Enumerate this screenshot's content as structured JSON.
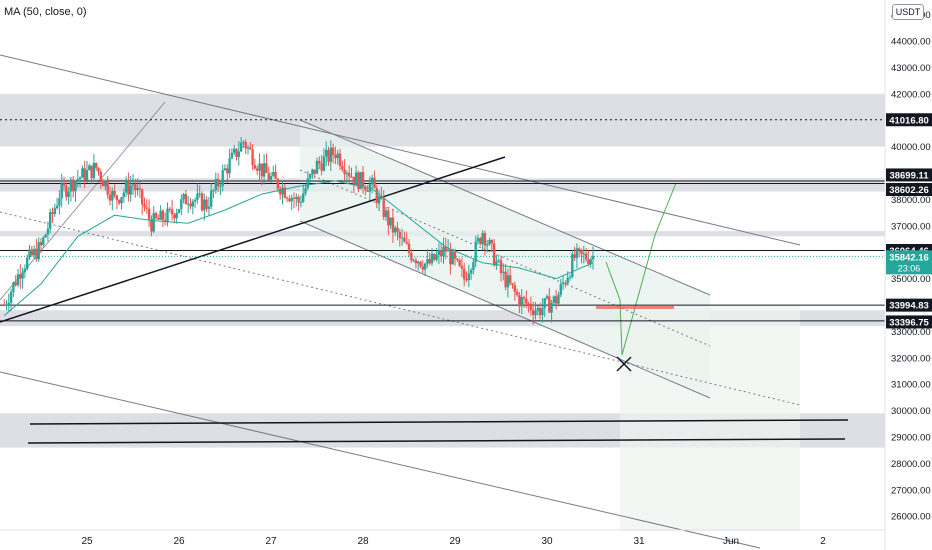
{
  "indicator": {
    "label": "MA (50, close, 0)"
  },
  "currency": "USDT",
  "colors": {
    "up": "#26a69a",
    "down": "#ef5350",
    "ma": "#26a69a",
    "zone": "#d1d4dc",
    "channel_fill": "#e6f2ec",
    "price_tag": "#26a69a",
    "projection": "#4caf50"
  },
  "chart_data": {
    "type": "candlestick",
    "title": "",
    "x_ticks": [
      "25",
      "26",
      "27",
      "28",
      "29",
      "30",
      "31",
      "Jun",
      "2"
    ],
    "y_ticks": [
      26000,
      27000,
      28000,
      29000,
      30000,
      31000,
      32000,
      33000,
      34000,
      35000,
      36000,
      37000,
      38000,
      39000,
      40000,
      41000,
      42000,
      43000,
      44000,
      45000
    ],
    "ylim": [
      25600,
      45500
    ],
    "xlim": [
      24.1,
      33.1
    ],
    "series": [
      {
        "name": "Price",
        "x": [
          24.1,
          24.3,
          24.5,
          24.7,
          24.9,
          25.1,
          25.3,
          25.5,
          25.7,
          25.9,
          26.1,
          26.3,
          26.5,
          26.7,
          26.9,
          27.1,
          27.3,
          27.5,
          27.7,
          27.9,
          28.1,
          28.3,
          28.5,
          28.7,
          28.9,
          29.1,
          29.3,
          29.5,
          29.7,
          29.9,
          30.1,
          30.3,
          30.5
        ],
        "y": [
          34000,
          35500,
          36200,
          38200,
          38800,
          39200,
          38000,
          38600,
          37100,
          37400,
          38100,
          37800,
          39100,
          40200,
          39100,
          38500,
          37900,
          39300,
          39800,
          38800,
          38500,
          37000,
          36000,
          35500,
          36100,
          35000,
          36800,
          35200,
          34200,
          33800,
          34200,
          35800,
          35842
        ]
      },
      {
        "name": "MA 50",
        "x": [
          24.1,
          24.5,
          24.9,
          25.3,
          25.7,
          26.1,
          26.5,
          26.9,
          27.3,
          27.7,
          28.1,
          28.5,
          28.9,
          29.3,
          29.7,
          30.1,
          30.5
        ],
        "y": [
          33600,
          34800,
          36600,
          37400,
          37200,
          37100,
          37600,
          38200,
          38500,
          38700,
          38400,
          37300,
          36200,
          35600,
          35400,
          35000,
          35600
        ]
      }
    ],
    "horizontal_levels": [
      {
        "value": 41016.8,
        "label": "41016.80",
        "style": "dotted"
      },
      {
        "value": 38699.11,
        "label": "38699.11",
        "style": "solid"
      },
      {
        "value": 38602.26,
        "label": "38602.26",
        "style": "solid"
      },
      {
        "value": 36064.46,
        "label": "36064.46",
        "style": "solid"
      },
      {
        "value": 33994.83,
        "label": "33994.83",
        "style": "solid"
      },
      {
        "value": 33396.75,
        "label": "33396.75",
        "style": "solid"
      }
    ],
    "current_price": {
      "value": 35842.16,
      "label": "35842.16",
      "timer": "23:06"
    },
    "zones": [
      [
        40000,
        42000
      ],
      [
        38300,
        38800
      ],
      [
        36600,
        36800
      ],
      [
        33200,
        33800
      ],
      [
        28600,
        29900
      ]
    ],
    "grid": false,
    "legend": "none"
  }
}
